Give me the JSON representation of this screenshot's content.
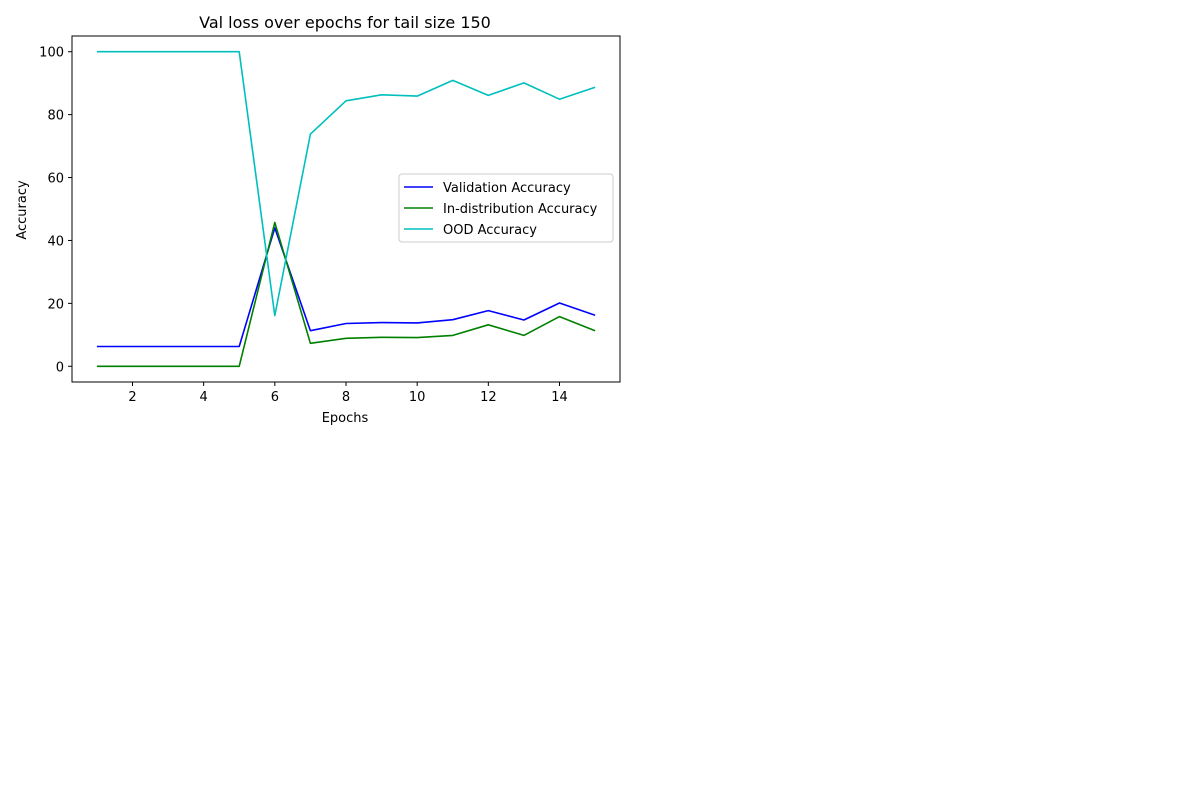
{
  "chart_data": {
    "type": "line",
    "title": "Val loss over epochs for tail size 150",
    "xlabel": "Epochs",
    "ylabel": "Accuracy",
    "x": [
      1,
      2,
      3,
      4,
      5,
      6,
      7,
      8,
      9,
      10,
      11,
      12,
      13,
      14,
      15
    ],
    "xticks": [
      2,
      4,
      6,
      8,
      10,
      12,
      14
    ],
    "yticks": [
      0,
      20,
      40,
      60,
      80,
      100
    ],
    "xlim": [
      0.3,
      15.7
    ],
    "ylim": [
      -5,
      105
    ],
    "grid": false,
    "legend_position": "center-right",
    "series": [
      {
        "name": "Validation Accuracy",
        "color": "#0000ff",
        "values": [
          6.3,
          6.3,
          6.3,
          6.3,
          6.3,
          44.0,
          11.3,
          13.6,
          13.9,
          13.8,
          14.8,
          17.7,
          14.7,
          20.1,
          16.2
        ]
      },
      {
        "name": "In-distribution Accuracy",
        "color": "#008000",
        "values": [
          0,
          0,
          0,
          0,
          0,
          45.7,
          7.3,
          8.9,
          9.2,
          9.1,
          9.8,
          13.2,
          9.8,
          15.8,
          11.3
        ]
      },
      {
        "name": "OOD Accuracy",
        "color": "#00bfbf",
        "values": [
          100,
          100,
          100,
          100,
          100,
          16.1,
          73.8,
          84.4,
          86.3,
          85.9,
          90.9,
          86.1,
          90.1,
          84.9,
          88.7
        ]
      }
    ]
  }
}
